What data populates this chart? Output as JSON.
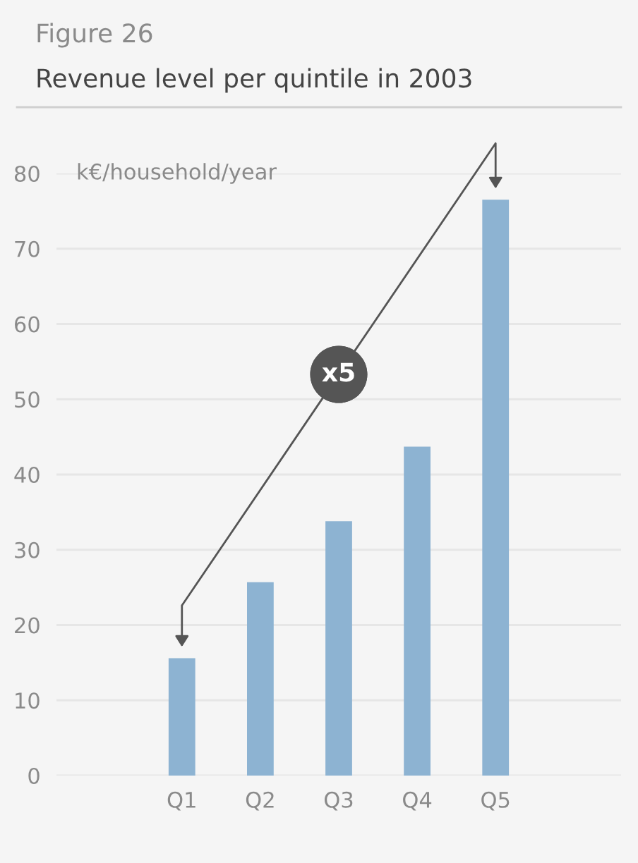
{
  "chart_data": {
    "type": "bar",
    "subtitle": "Figure 26",
    "title": "Revenue level per quintile in 2003",
    "ylabel": "k€/household/year",
    "categories": [
      "Q1",
      "Q2",
      "Q3",
      "Q4",
      "Q5"
    ],
    "values": [
      15.6,
      25.7,
      33.8,
      43.7,
      76.5
    ],
    "color": "#8db3d2",
    "ylim": [
      0,
      80
    ],
    "yticks": [
      0,
      10,
      20,
      30,
      40,
      50,
      60,
      70,
      80
    ],
    "grid": "y",
    "annotations": [
      "x5"
    ]
  }
}
